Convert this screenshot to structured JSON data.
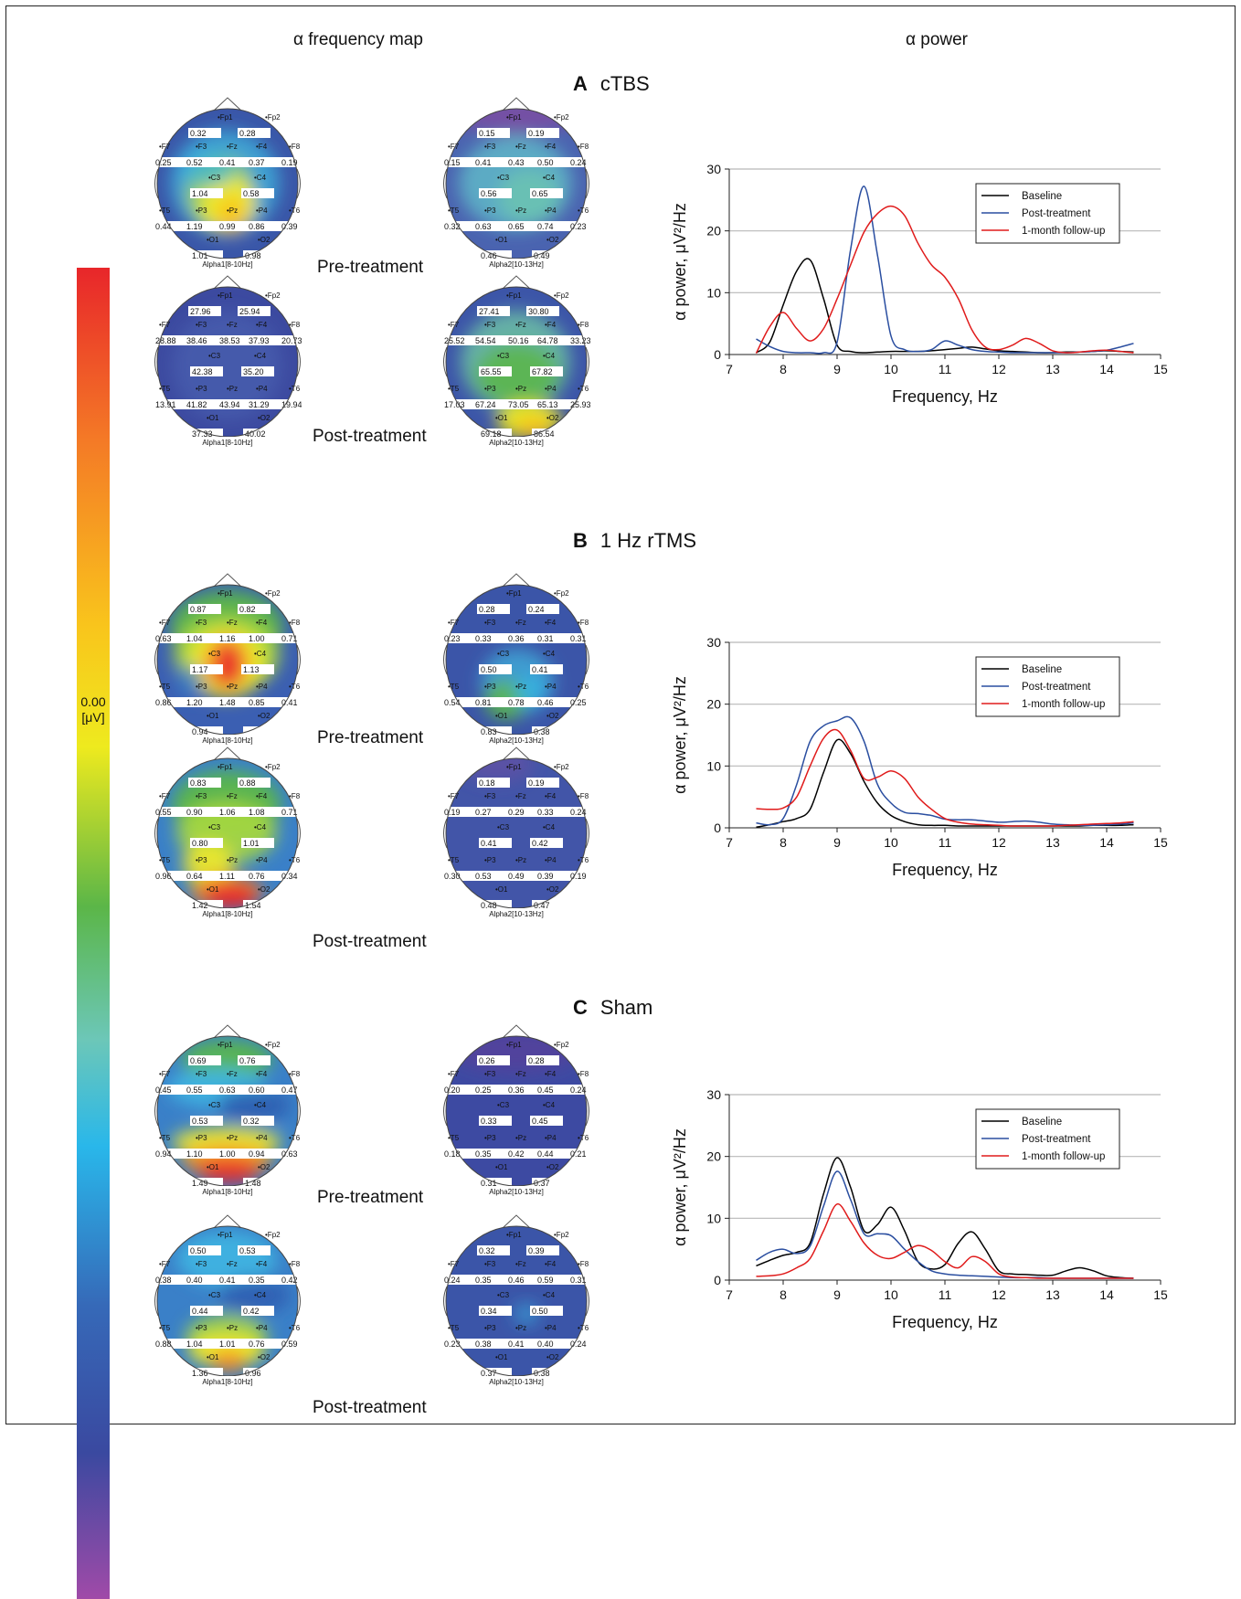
{
  "headers": {
    "left": "α frequency map",
    "right": "α power"
  },
  "scale": {
    "min_label": "0.00",
    "unit_label": "[μV]"
  },
  "captions": {
    "pre": "Pre-treatment",
    "post": "Post-treatment"
  },
  "legend_entries": [
    "Baseline",
    "Post-treatment",
    "1-month follow-up"
  ],
  "colors": {
    "baseline": "#000000",
    "post": "#2a4ea0",
    "followup": "#e01b1b"
  },
  "sections": [
    {
      "letter": "A",
      "title": "cTBS",
      "maps": [
        {
          "band": "Alpha1[8-10Hz]",
          "state": "pre",
          "theme": "a1pre",
          "values": [
            "0.32",
            "0.28",
            "0.25",
            "0.52",
            "0.41",
            "0.37",
            "0.19",
            "1.04",
            "0.58",
            "0.44",
            "1.19",
            "0.99",
            "0.86",
            "0.39",
            "1.01",
            "0.98"
          ]
        },
        {
          "band": "Alpha2[10-13Hz]",
          "state": "pre",
          "theme": "a2pre",
          "values": [
            "0.15",
            "0.19",
            "0.15",
            "0.41",
            "0.43",
            "0.50",
            "0.24",
            "0.56",
            "0.65",
            "0.32",
            "0.63",
            "0.65",
            "0.74",
            "0.23",
            "0.46",
            "0.49"
          ]
        },
        {
          "band": "Alpha1[8-10Hz]",
          "state": "post",
          "theme": "a1post",
          "values": [
            "27.96",
            "25.94",
            "28.88",
            "38.46",
            "38.53",
            "37.93",
            "20.73",
            "42.38",
            "35.20",
            "13.91",
            "41.82",
            "43.94",
            "31.29",
            "19.94",
            "37.33",
            "40.02"
          ]
        },
        {
          "band": "Alpha2[10-13Hz]",
          "state": "post",
          "theme": "a2post",
          "values": [
            "27.41",
            "30.80",
            "25.52",
            "54.54",
            "50.16",
            "64.78",
            "33.23",
            "65.55",
            "67.82",
            "17.03",
            "67.24",
            "73.05",
            "65.13",
            "25.93",
            "69.18",
            "86.54"
          ]
        }
      ]
    },
    {
      "letter": "B",
      "title": "1 Hz rTMS",
      "maps": [
        {
          "band": "Alpha1[8-10Hz]",
          "state": "pre",
          "theme": "b1pre",
          "values": [
            "0.87",
            "0.82",
            "0.63",
            "1.04",
            "1.16",
            "1.00",
            "0.71",
            "1.17",
            "1.13",
            "0.86",
            "1.20",
            "1.48",
            "0.85",
            "0.41",
            "0.94",
            ""
          ]
        },
        {
          "band": "Alpha2[10-13Hz]",
          "state": "pre",
          "theme": "b2pre",
          "values": [
            "0.28",
            "0.24",
            "0.23",
            "0.33",
            "0.36",
            "0.31",
            "0.31",
            "0.50",
            "0.41",
            "0.54",
            "0.81",
            "0.78",
            "0.46",
            "0.25",
            "0.83",
            "0.38"
          ]
        },
        {
          "band": "Alpha1[8-10Hz]",
          "state": "post",
          "theme": "b1post",
          "values": [
            "0.83",
            "0.88",
            "0.55",
            "0.90",
            "1.06",
            "1.08",
            "0.71",
            "0.80",
            "1.01",
            "0.96",
            "0.64",
            "1.11",
            "0.76",
            "0.34",
            "1.42",
            "1.54"
          ]
        },
        {
          "band": "Alpha2[10-13Hz]",
          "state": "post",
          "theme": "b2post",
          "values": [
            "0.18",
            "0.19",
            "0.19",
            "0.27",
            "0.29",
            "0.33",
            "0.24",
            "0.41",
            "0.42",
            "0.30",
            "0.53",
            "0.49",
            "0.39",
            "0.19",
            "0.48",
            "0.47"
          ]
        }
      ]
    },
    {
      "letter": "C",
      "title": "Sham",
      "maps": [
        {
          "band": "Alpha1[8-10Hz]",
          "state": "pre",
          "theme": "c1pre",
          "values": [
            "0.69",
            "0.76",
            "0.45",
            "0.55",
            "0.63",
            "0.60",
            "0.47",
            "0.53",
            "0.32",
            "0.94",
            "1.10",
            "1.00",
            "0.94",
            "0.63",
            "1.49",
            "1.48"
          ]
        },
        {
          "band": "Alpha2[10-13Hz]",
          "state": "pre",
          "theme": "c2pre",
          "values": [
            "0.26",
            "0.28",
            "0.20",
            "0.25",
            "0.36",
            "0.45",
            "0.24",
            "0.33",
            "0.45",
            "0.18",
            "0.35",
            "0.42",
            "0.44",
            "0.21",
            "0.31",
            "0.37"
          ]
        },
        {
          "band": "Alpha1[8-10Hz]",
          "state": "post",
          "theme": "c1post",
          "values": [
            "0.50",
            "0.53",
            "0.38",
            "0.40",
            "0.41",
            "0.35",
            "0.42",
            "0.44",
            "0.42",
            "0.88",
            "1.04",
            "1.01",
            "0.76",
            "0.59",
            "1.36",
            "0.96"
          ]
        },
        {
          "band": "Alpha2[10-13Hz]",
          "state": "post",
          "theme": "c2post",
          "values": [
            "0.32",
            "0.39",
            "0.24",
            "0.35",
            "0.46",
            "0.59",
            "0.31",
            "0.34",
            "0.50",
            "0.23",
            "0.38",
            "0.41",
            "0.40",
            "0.24",
            "0.37",
            "0.38"
          ]
        }
      ]
    }
  ],
  "electrodes": [
    "Fp1",
    "Fp2",
    "F7",
    "F3",
    "Fz",
    "F4",
    "F8",
    "C3",
    "C4",
    "T5",
    "P3",
    "Pz",
    "P4",
    "T6",
    "O1",
    "O2"
  ],
  "chart_data": [
    {
      "type": "line",
      "panel": "A",
      "xlabel": "Frequency, Hz",
      "ylabel": "α power, μV²/Hz",
      "xlim": [
        7,
        15
      ],
      "ylim": [
        0,
        30
      ],
      "xticks": [
        7,
        8,
        9,
        10,
        11,
        12,
        13,
        14,
        15
      ],
      "yticks": [
        0,
        10,
        20,
        30
      ],
      "grid": "horizontal",
      "legend": "top-right",
      "x": [
        7.5,
        7.75,
        8,
        8.25,
        8.5,
        8.75,
        9,
        9.25,
        9.5,
        9.75,
        10,
        10.25,
        10.5,
        10.75,
        11,
        11.25,
        11.5,
        11.75,
        12,
        12.25,
        12.5,
        12.75,
        13,
        13.25,
        13.5,
        13.75,
        14,
        14.25,
        14.5
      ],
      "series": [
        {
          "name": "Baseline",
          "values": [
            0.3,
            2,
            8,
            13.5,
            15.3,
            9,
            1.5,
            0.5,
            0.3,
            0.4,
            0.5,
            0.5,
            0.5,
            0.6,
            0.8,
            1,
            1.2,
            0.9,
            0.6,
            0.5,
            0.4,
            0.3,
            0.3,
            0.4,
            0.4,
            0.5,
            0.6,
            0.5,
            0.4
          ]
        },
        {
          "name": "Post-treatment",
          "values": [
            2.5,
            1.3,
            0.5,
            0.3,
            0.3,
            0.3,
            2,
            17,
            27.2,
            16,
            3,
            0.8,
            0.5,
            0.8,
            2.2,
            1.5,
            0.8,
            0.5,
            0.4,
            0.3,
            0.3,
            0.3,
            0.3,
            0.3,
            0.4,
            0.5,
            0.7,
            1.2,
            1.8
          ]
        },
        {
          "name": "1-month follow-up",
          "values": [
            0.2,
            4.5,
            6.8,
            4.2,
            2.2,
            4.2,
            9,
            14.5,
            19.8,
            22.8,
            24,
            22.5,
            18,
            14.5,
            12.5,
            9,
            4,
            1.2,
            0.8,
            1.5,
            2.6,
            1.8,
            0.6,
            0.3,
            0.4,
            0.6,
            0.7,
            0.5,
            0.3
          ]
        }
      ]
    },
    {
      "type": "line",
      "panel": "B",
      "xlabel": "Frequency, Hz",
      "ylabel": "α power, μV²/Hz",
      "xlim": [
        7,
        15
      ],
      "ylim": [
        0,
        30
      ],
      "xticks": [
        7,
        8,
        9,
        10,
        11,
        12,
        13,
        14,
        15
      ],
      "yticks": [
        0,
        10,
        20,
        30
      ],
      "grid": "horizontal",
      "legend": "top-right",
      "x": [
        7.5,
        7.75,
        8,
        8.25,
        8.5,
        8.75,
        9,
        9.25,
        9.5,
        9.75,
        10,
        10.25,
        10.5,
        10.75,
        11,
        11.25,
        11.5,
        11.75,
        12,
        12.25,
        12.5,
        12.75,
        13,
        13.25,
        13.5,
        13.75,
        14,
        14.25,
        14.5
      ],
      "series": [
        {
          "name": "Baseline",
          "values": [
            0.1,
            0.5,
            1,
            1.5,
            3,
            9,
            14.2,
            12,
            7.5,
            4,
            2,
            1,
            0.5,
            0.4,
            0.4,
            0.3,
            0.3,
            0.3,
            0.3,
            0.3,
            0.3,
            0.3,
            0.3,
            0.3,
            0.3,
            0.4,
            0.4,
            0.4,
            0.5
          ]
        },
        {
          "name": "Post-treatment",
          "values": [
            0.8,
            0.5,
            1.5,
            7,
            14,
            16.5,
            17.3,
            17.8,
            14,
            7,
            4,
            2.5,
            2.3,
            2,
            1.4,
            1.3,
            1.3,
            1.1,
            0.9,
            1,
            1.1,
            0.9,
            0.6,
            0.5,
            0.4,
            0.4,
            0.5,
            0.6,
            0.8
          ]
        },
        {
          "name": "1-month follow-up",
          "values": [
            3.1,
            3,
            3.2,
            5,
            10,
            14.5,
            15.8,
            12.5,
            8,
            8.2,
            9.2,
            8,
            5,
            3,
            1.5,
            0.9,
            0.6,
            0.5,
            0.4,
            0.3,
            0.3,
            0.3,
            0.3,
            0.4,
            0.5,
            0.6,
            0.7,
            0.8,
            1
          ]
        }
      ]
    },
    {
      "type": "line",
      "panel": "C",
      "xlabel": "Frequency, Hz",
      "ylabel": "α power, μV²/Hz",
      "xlim": [
        7,
        15
      ],
      "ylim": [
        0,
        30
      ],
      "xticks": [
        7,
        8,
        9,
        10,
        11,
        12,
        13,
        14,
        15
      ],
      "yticks": [
        0,
        10,
        20,
        30
      ],
      "grid": "horizontal",
      "legend": "top-right",
      "x": [
        7.5,
        7.75,
        8,
        8.25,
        8.5,
        8.75,
        9,
        9.25,
        9.5,
        9.75,
        10,
        10.25,
        10.5,
        10.75,
        11,
        11.25,
        11.5,
        11.75,
        12,
        12.25,
        12.5,
        12.75,
        13,
        13.25,
        13.5,
        13.75,
        14,
        14.25,
        14.5
      ],
      "series": [
        {
          "name": "Baseline",
          "values": [
            2.3,
            3.2,
            4,
            4.5,
            6,
            14,
            19.8,
            15,
            8,
            9,
            11.8,
            8,
            3,
            1.8,
            2.5,
            6,
            7.8,
            5,
            1.5,
            1,
            0.9,
            0.8,
            0.8,
            1.5,
            2,
            1.5,
            0.7,
            0.4,
            0.3
          ]
        },
        {
          "name": "Post-treatment",
          "values": [
            3.2,
            4.5,
            5,
            4.3,
            5.5,
            12,
            17.6,
            13,
            7.5,
            7.5,
            7.2,
            5,
            3,
            1.5,
            1,
            0.8,
            0.7,
            0.6,
            0.5,
            0.4,
            0.4,
            0.4,
            0.3,
            0.3,
            0.3,
            0.3,
            0.3,
            0.3,
            0.3
          ]
        },
        {
          "name": "1-month follow-up",
          "values": [
            0.6,
            0.7,
            1,
            2,
            3.5,
            8,
            12.3,
            9.5,
            6,
            4,
            3.5,
            4.5,
            5.6,
            4.8,
            3,
            2,
            3.8,
            3,
            1,
            0.5,
            0.4,
            0.3,
            0.3,
            0.3,
            0.3,
            0.3,
            0.3,
            0.3,
            0.3
          ]
        }
      ]
    }
  ]
}
